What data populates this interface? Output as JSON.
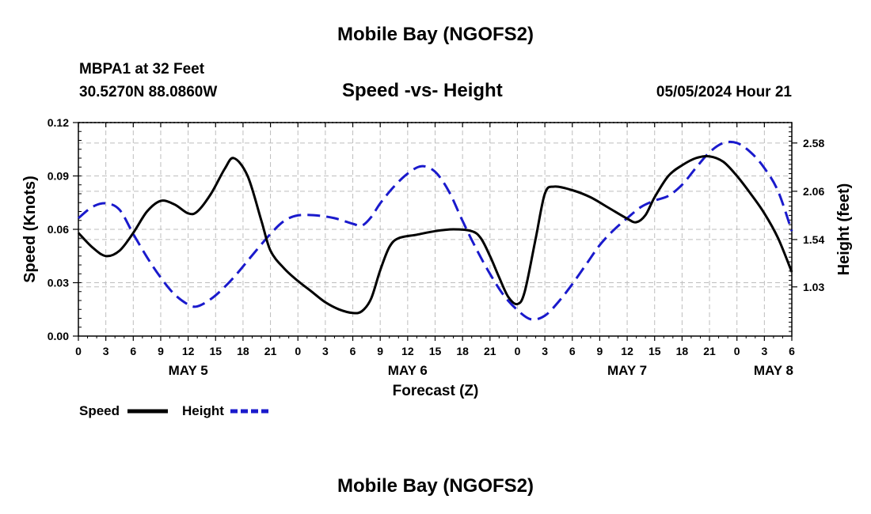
{
  "page": {
    "title": "Mobile Bay (NGOFS2)",
    "footer_title": "Mobile Bay (NGOFS2)",
    "station_line1": "MBPA1 at 32 Feet",
    "station_line2": "30.5270N  88.0860W",
    "datetime": "05/05/2024 Hour 21"
  },
  "legend": {
    "speed_label": "Speed",
    "height_label": "Height"
  },
  "chart_data": {
    "type": "line",
    "title": "Speed -vs- Height",
    "xlabel": "Forecast (Z)",
    "ylabel_left": "Speed (Knots)",
    "ylabel_right": "Height (feet)",
    "grid": true,
    "legend_position": "bottom-left",
    "xlim": [
      0,
      78
    ],
    "x_unit": "hours from May 5 00Z",
    "x_ticks": [
      {
        "x": 0,
        "label": "0"
      },
      {
        "x": 3,
        "label": "3"
      },
      {
        "x": 6,
        "label": "6"
      },
      {
        "x": 9,
        "label": "9"
      },
      {
        "x": 12,
        "label": "12"
      },
      {
        "x": 15,
        "label": "15"
      },
      {
        "x": 18,
        "label": "18"
      },
      {
        "x": 21,
        "label": "21"
      },
      {
        "x": 24,
        "label": "0"
      },
      {
        "x": 27,
        "label": "3"
      },
      {
        "x": 30,
        "label": "6"
      },
      {
        "x": 33,
        "label": "9"
      },
      {
        "x": 36,
        "label": "12"
      },
      {
        "x": 39,
        "label": "15"
      },
      {
        "x": 42,
        "label": "18"
      },
      {
        "x": 45,
        "label": "21"
      },
      {
        "x": 48,
        "label": "0"
      },
      {
        "x": 51,
        "label": "3"
      },
      {
        "x": 54,
        "label": "6"
      },
      {
        "x": 57,
        "label": "9"
      },
      {
        "x": 60,
        "label": "12"
      },
      {
        "x": 63,
        "label": "15"
      },
      {
        "x": 66,
        "label": "18"
      },
      {
        "x": 69,
        "label": "21"
      },
      {
        "x": 72,
        "label": "0"
      },
      {
        "x": 75,
        "label": "3"
      },
      {
        "x": 78,
        "label": "6"
      }
    ],
    "date_labels": [
      {
        "x": 12,
        "label": "MAY 5"
      },
      {
        "x": 36,
        "label": "MAY 6"
      },
      {
        "x": 60,
        "label": "MAY 7"
      },
      {
        "x": 76,
        "label": "MAY 8"
      }
    ],
    "y_left": {
      "min": 0,
      "max": 0.12,
      "ticks": [
        "0.00",
        "0.03",
        "0.06",
        "0.09",
        "0.12"
      ],
      "tick_values": [
        0,
        0.03,
        0.06,
        0.09,
        0.12
      ]
    },
    "y_right": {
      "min": 0.5,
      "max": 2.8,
      "ticks": [
        "1.03",
        "1.54",
        "2.06",
        "2.58"
      ],
      "tick_values": [
        1.03,
        1.54,
        2.06,
        2.58
      ]
    },
    "series": [
      {
        "name": "Speed",
        "axis": "left",
        "color": "#000000",
        "dash": "solid",
        "points": [
          [
            0,
            0.058
          ],
          [
            1.5,
            0.05
          ],
          [
            3,
            0.045
          ],
          [
            4.5,
            0.048
          ],
          [
            6,
            0.058
          ],
          [
            7.5,
            0.07
          ],
          [
            9,
            0.076
          ],
          [
            10.5,
            0.074
          ],
          [
            12,
            0.069
          ],
          [
            13,
            0.07
          ],
          [
            14.5,
            0.08
          ],
          [
            16,
            0.094
          ],
          [
            17,
            0.1
          ],
          [
            18.5,
            0.09
          ],
          [
            20,
            0.065
          ],
          [
            21,
            0.048
          ],
          [
            22.5,
            0.038
          ],
          [
            24,
            0.031
          ],
          [
            25.5,
            0.025
          ],
          [
            27,
            0.019
          ],
          [
            28.5,
            0.015
          ],
          [
            30,
            0.013
          ],
          [
            31,
            0.014
          ],
          [
            32,
            0.021
          ],
          [
            33,
            0.037
          ],
          [
            34,
            0.05
          ],
          [
            35,
            0.055
          ],
          [
            37,
            0.057
          ],
          [
            39,
            0.059
          ],
          [
            41,
            0.06
          ],
          [
            43,
            0.059
          ],
          [
            44,
            0.055
          ],
          [
            45,
            0.045
          ],
          [
            46,
            0.033
          ],
          [
            47,
            0.022
          ],
          [
            48,
            0.018
          ],
          [
            48.8,
            0.025
          ],
          [
            50,
            0.055
          ],
          [
            51,
            0.08
          ],
          [
            52,
            0.084
          ],
          [
            54,
            0.082
          ],
          [
            56,
            0.078
          ],
          [
            58,
            0.072
          ],
          [
            60,
            0.066
          ],
          [
            61,
            0.064
          ],
          [
            62,
            0.068
          ],
          [
            63,
            0.078
          ],
          [
            64.5,
            0.09
          ],
          [
            66,
            0.096
          ],
          [
            67.5,
            0.1
          ],
          [
            69,
            0.101
          ],
          [
            70.5,
            0.098
          ],
          [
            72,
            0.09
          ],
          [
            73.5,
            0.08
          ],
          [
            75,
            0.069
          ],
          [
            76.5,
            0.055
          ],
          [
            78,
            0.036
          ]
        ]
      },
      {
        "name": "Height",
        "axis": "right",
        "color": "#1a1acc",
        "dash": "dashed",
        "points": [
          [
            0,
            1.77
          ],
          [
            1.5,
            1.89
          ],
          [
            3,
            1.93
          ],
          [
            4.5,
            1.86
          ],
          [
            6,
            1.6
          ],
          [
            7.5,
            1.35
          ],
          [
            9,
            1.13
          ],
          [
            10.5,
            0.95
          ],
          [
            12,
            0.84
          ],
          [
            13,
            0.82
          ],
          [
            14.5,
            0.9
          ],
          [
            16,
            1.03
          ],
          [
            17.5,
            1.19
          ],
          [
            19,
            1.37
          ],
          [
            21,
            1.6
          ],
          [
            22.5,
            1.74
          ],
          [
            24,
            1.8
          ],
          [
            26,
            1.8
          ],
          [
            28,
            1.77
          ],
          [
            30,
            1.71
          ],
          [
            31,
            1.69
          ],
          [
            32,
            1.78
          ],
          [
            33,
            1.93
          ],
          [
            34.5,
            2.11
          ],
          [
            36,
            2.25
          ],
          [
            37.5,
            2.33
          ],
          [
            39,
            2.27
          ],
          [
            40.5,
            2.06
          ],
          [
            42,
            1.74
          ],
          [
            43.5,
            1.44
          ],
          [
            45,
            1.17
          ],
          [
            46.5,
            0.94
          ],
          [
            48,
            0.78
          ],
          [
            49.5,
            0.68
          ],
          [
            51,
            0.72
          ],
          [
            52.5,
            0.87
          ],
          [
            54,
            1.06
          ],
          [
            55.5,
            1.27
          ],
          [
            57,
            1.48
          ],
          [
            58.5,
            1.64
          ],
          [
            60,
            1.77
          ],
          [
            61.5,
            1.89
          ],
          [
            63,
            1.96
          ],
          [
            64.5,
            2.01
          ],
          [
            66,
            2.13
          ],
          [
            67.5,
            2.31
          ],
          [
            69,
            2.48
          ],
          [
            70.5,
            2.58
          ],
          [
            72,
            2.58
          ],
          [
            73.5,
            2.48
          ],
          [
            75,
            2.31
          ],
          [
            76.5,
            2.06
          ],
          [
            78,
            1.63
          ]
        ]
      }
    ]
  }
}
